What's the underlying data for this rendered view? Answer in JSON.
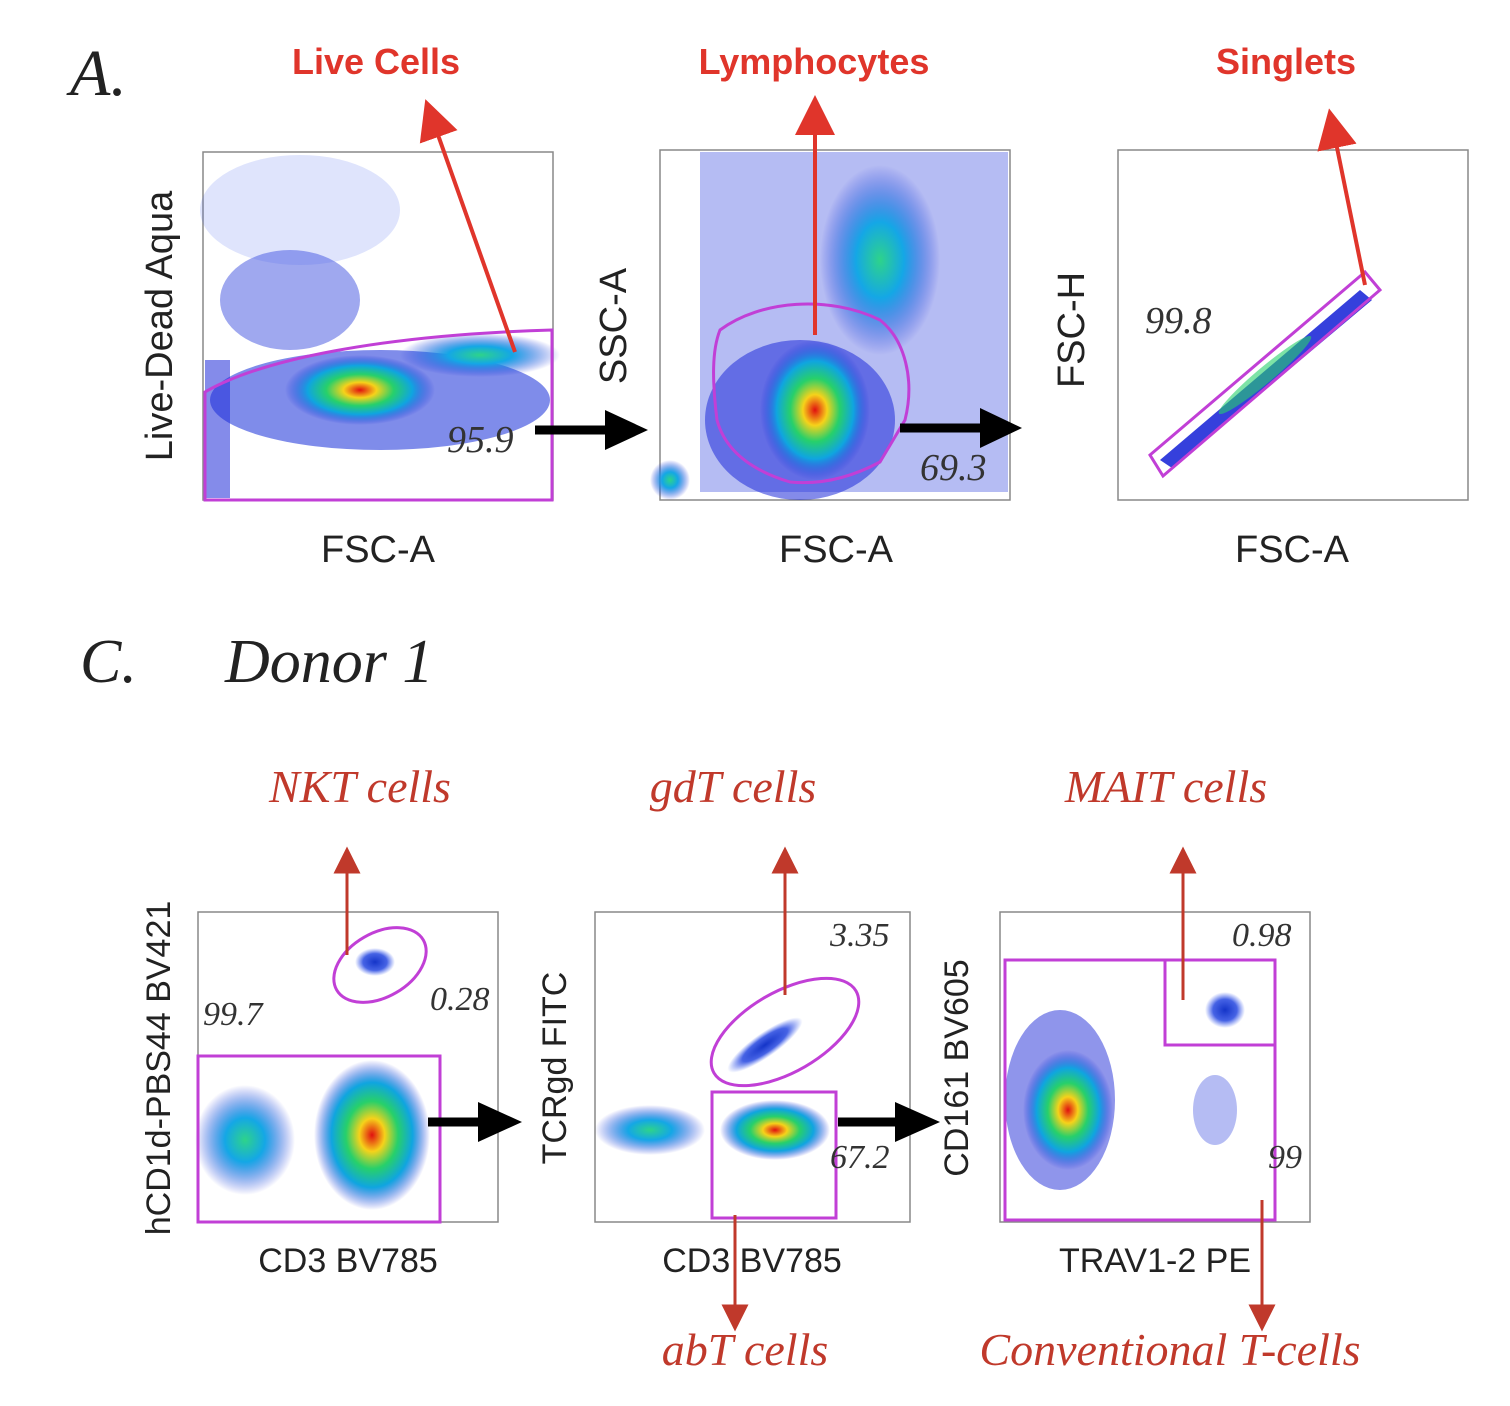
{
  "panel_a": {
    "label": "A.",
    "plots": [
      {
        "title": "Live Cells",
        "xlabel": "FSC-A",
        "ylabel": "Live-Dead Aqua",
        "gate_value": "95.9"
      },
      {
        "title": "Lymphocytes",
        "xlabel": "FSC-A",
        "ylabel": "SSC-A",
        "gate_value": "69.3"
      },
      {
        "title": "Singlets",
        "xlabel": "FSC-A",
        "ylabel": "FSC-H",
        "gate_value": "99.8"
      }
    ]
  },
  "panel_c": {
    "label": "C.",
    "subtitle": "Donor 1",
    "plots": [
      {
        "title": "NKT cells",
        "xlabel": "CD3 BV785",
        "ylabel": "hCD1d-PBS44 BV421",
        "values": [
          "99.7",
          "0.28"
        ]
      },
      {
        "title": "gdT cells",
        "bottom_label": "abT cells",
        "xlabel": "CD3 BV785",
        "ylabel": "TCRgd FITC",
        "values": [
          "3.35",
          "67.2"
        ]
      },
      {
        "title": "MAIT cells",
        "bottom_label": "Conventional T-cells",
        "xlabel": "TRAV1-2 PE",
        "ylabel": "CD161 BV605",
        "values": [
          "0.98",
          "99"
        ]
      }
    ]
  },
  "colors": {
    "annotation_red": "#e0352b",
    "annotation_darkred": "#c0392b",
    "gate_magenta": "#c13fd6",
    "dot_blue": "#1f2bd8"
  }
}
